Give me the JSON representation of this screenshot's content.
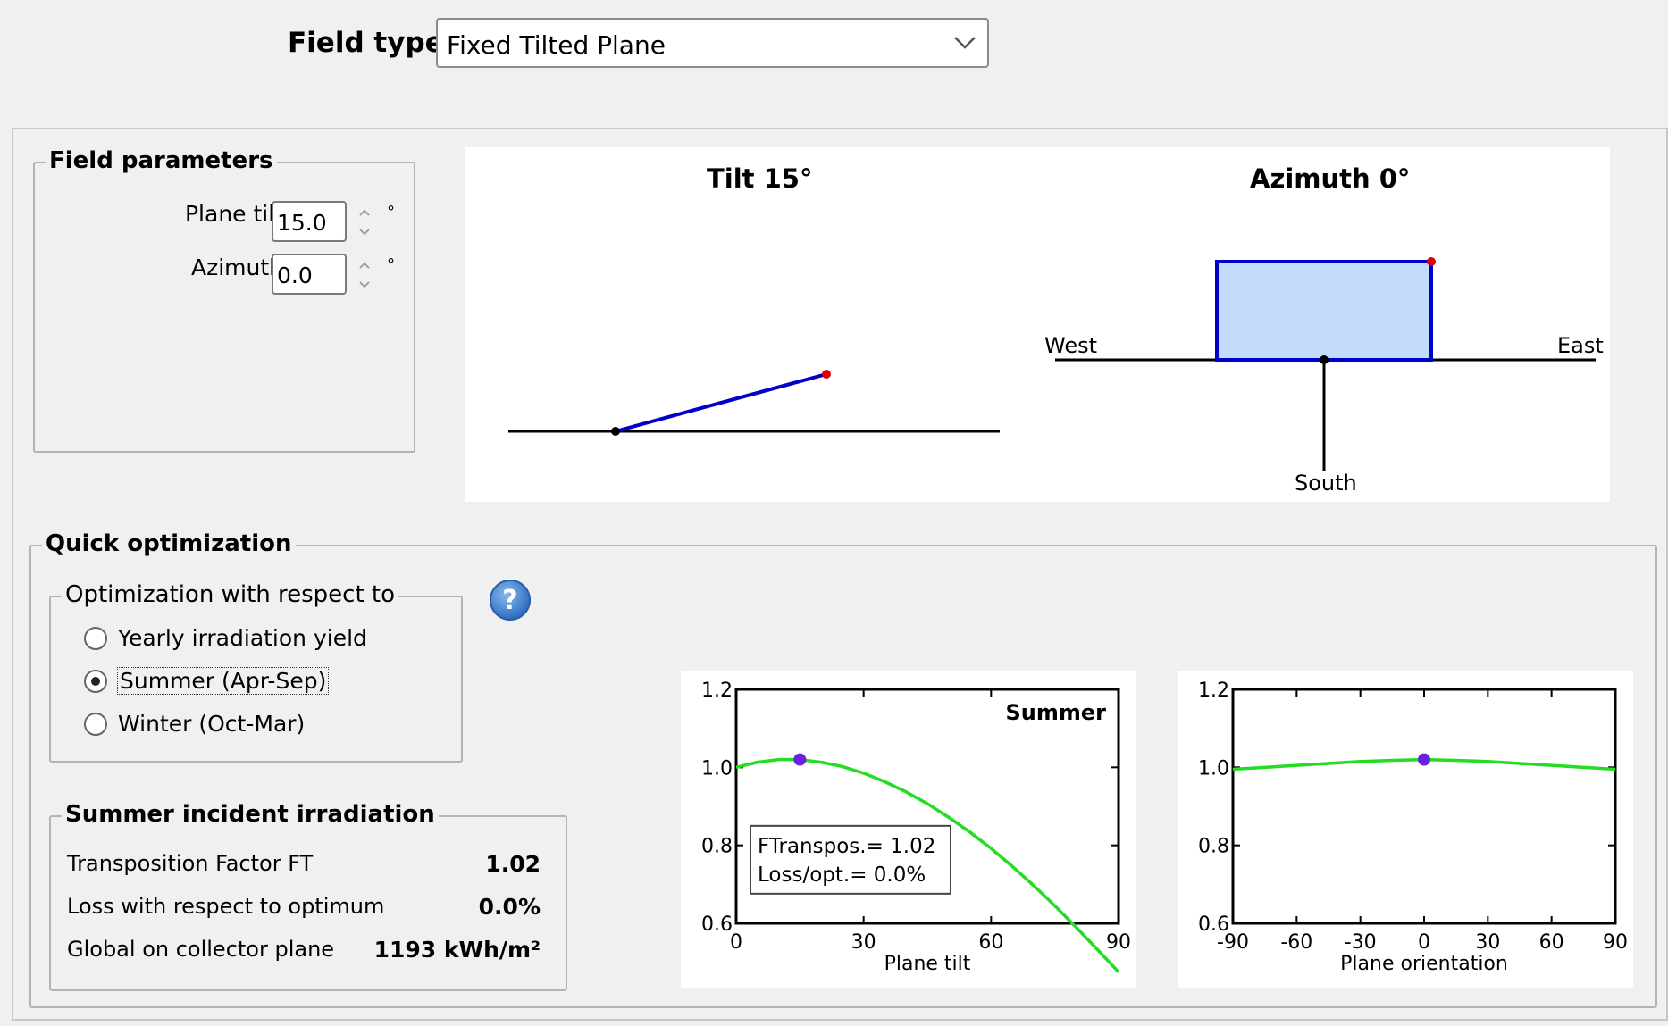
{
  "field_type": {
    "label": "Field type",
    "value": "Fixed Tilted Plane"
  },
  "field_parameters": {
    "title": "Field parameters",
    "plane_tilt": {
      "label": "Plane tilt",
      "value": "15.0",
      "unit": "°"
    },
    "azimuth": {
      "label": "Azimuth",
      "value": "0.0",
      "unit": "°"
    }
  },
  "sketch": {
    "tilt_title": "Tilt 15°",
    "azimuth_title": "Azimuth 0°",
    "west_label": "West",
    "east_label": "East",
    "south_label": "South",
    "tilt_deg": 15,
    "azimuth_deg": 0
  },
  "quick_optimization": {
    "title": "Quick optimization",
    "respect_to": {
      "title": "Optimization with respect to",
      "options": [
        {
          "label": "Yearly irradiation yield",
          "selected": false
        },
        {
          "label": "Summer (Apr-Sep)",
          "selected": true
        },
        {
          "label": "Winter (Oct-Mar)",
          "selected": false
        }
      ]
    },
    "irradiation": {
      "title": "Summer incident irradiation",
      "rows": [
        {
          "label": "Transposition Factor FT",
          "value": "1.02"
        },
        {
          "label": "Loss with respect to optimum",
          "value": "0.0%"
        },
        {
          "label": "Global on collector plane",
          "value": "1193 kWh/m²"
        }
      ]
    }
  },
  "colors": {
    "curve": "#22dd22",
    "marker": "#6b22e0",
    "plane_line": "#0000c8",
    "plane_fill": "#c4dcfc",
    "red_dot": "#e00000"
  },
  "chart_data": [
    {
      "type": "line",
      "title": "Summer",
      "xlabel": "Plane tilt",
      "ylabel": "",
      "xlim": [
        0,
        90
      ],
      "ylim": [
        0.6,
        1.2
      ],
      "xticks": [
        "0",
        "30",
        "60",
        "90"
      ],
      "yticks": [
        "0.6",
        "0.8",
        "1.0",
        "1.2"
      ],
      "series": [
        {
          "x": [
            0,
            5,
            10,
            15,
            20,
            25,
            30,
            35,
            40,
            45,
            50,
            55,
            60,
            65,
            70,
            75,
            80,
            85,
            90
          ],
          "y": [
            1.0,
            1.013,
            1.02,
            1.02,
            1.013,
            1.002,
            0.985,
            0.963,
            0.937,
            0.907,
            0.872,
            0.834,
            0.792,
            0.746,
            0.697,
            0.645,
            0.59,
            0.533,
            0.475
          ]
        }
      ],
      "marker": {
        "x": 15,
        "y": 1.02
      },
      "annotation": [
        "FTranspos.= 1.02",
        "Loss/opt.= 0.0%"
      ]
    },
    {
      "type": "line",
      "title": "",
      "xlabel": "Plane orientation",
      "ylabel": "",
      "xlim": [
        -90,
        90
      ],
      "ylim": [
        0.6,
        1.2
      ],
      "xticks": [
        "-90",
        "-60",
        "-30",
        "0",
        "30",
        "60",
        "90"
      ],
      "yticks": [
        "0.6",
        "0.8",
        "1.0",
        "1.2"
      ],
      "series": [
        {
          "x": [
            -90,
            -75,
            -60,
            -45,
            -30,
            -15,
            0,
            15,
            30,
            45,
            60,
            75,
            90
          ],
          "y": [
            0.995,
            1.0,
            1.005,
            1.01,
            1.015,
            1.018,
            1.02,
            1.018,
            1.015,
            1.01,
            1.005,
            1.0,
            0.995
          ]
        }
      ],
      "marker": {
        "x": 0,
        "y": 1.02
      }
    }
  ]
}
